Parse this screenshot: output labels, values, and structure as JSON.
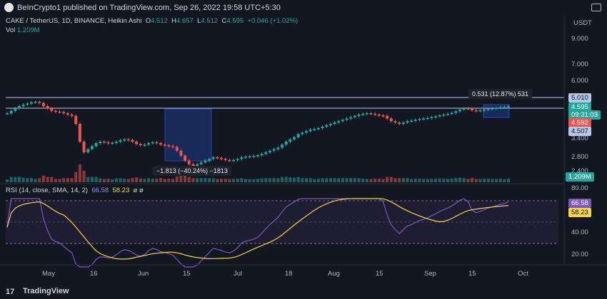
{
  "header": {
    "published": "BeInCrypto1 published on TradingView.com, Sep 26, 2022 19:58 UTC+5:30"
  },
  "legend": {
    "symbol": "CAKE / TetherUS, 1D, BINANCE, Heikin Ashi",
    "o_label": "O",
    "o": "4.512",
    "h_label": "H",
    "h": "4.657",
    "l_label": "L",
    "l": "4.512",
    "c_label": "C",
    "c": "4.595",
    "change": "+0.046 (+1.02%)",
    "vol_label": "Vol",
    "vol": "1.209M"
  },
  "rsi_legend": {
    "label": "RSI (14, close, SMA, 14, 2)",
    "rsi": "66.58",
    "sma": "58.23",
    "tail": "ø ø"
  },
  "price_axis": {
    "currency": "USDT",
    "ticks": [
      "9.000",
      "7.000",
      "6.000",
      "3.400",
      "2.800",
      "2.400"
    ]
  },
  "price_badges": {
    "upper_line": "5.010",
    "last": "4.595",
    "countdown": "09:31:03",
    "red": "4.592",
    "lower_line": "4.507",
    "volume": "1.209M"
  },
  "rsi_axis": {
    "ticks": [
      "80.00",
      "40.00",
      "20.00"
    ],
    "rsi_badge": "66.58",
    "sma_badge": "58.23"
  },
  "annotations": {
    "measure_up": "0.531 (12.87%) 531",
    "measure_down": "−1.813 (−40.24%) −1813"
  },
  "time_axis": [
    "May",
    "16",
    "Jun",
    "15",
    "Jul",
    "18",
    "Aug",
    "15",
    "Sep",
    "15",
    "Oct"
  ],
  "footer": {
    "brand": "TradingView",
    "mark": "17"
  },
  "colors": {
    "up": "#26a69a",
    "down": "#ef5350",
    "rsi": "#7e57c2",
    "sma": "#f5d547",
    "bg": "#131722",
    "line": "#b8c7e8"
  },
  "chart_data": {
    "type": "candlestick",
    "symbol": "CAKE / TetherUS",
    "candles": [
      [
        4.3,
        4.3
      ],
      [
        4.3,
        4.4
      ],
      [
        4.4,
        4.5
      ],
      [
        4.5,
        4.6
      ],
      [
        4.6,
        4.67
      ],
      [
        4.67,
        4.72
      ],
      [
        4.72,
        4.78
      ],
      [
        4.78,
        4.8
      ],
      [
        4.8,
        4.75
      ],
      [
        4.75,
        4.6
      ],
      [
        4.6,
        4.5
      ],
      [
        4.5,
        4.4
      ],
      [
        4.4,
        4.37
      ],
      [
        4.37,
        4.35
      ],
      [
        4.35,
        4.3
      ],
      [
        4.3,
        4.25
      ],
      [
        4.25,
        4.2
      ],
      [
        4.2,
        3.9
      ],
      [
        3.9,
        3.3
      ],
      [
        3.3,
        2.95
      ],
      [
        2.95,
        3.05
      ],
      [
        3.05,
        3.15
      ],
      [
        3.15,
        3.25
      ],
      [
        3.25,
        3.3
      ],
      [
        3.3,
        3.28
      ],
      [
        3.28,
        3.25
      ],
      [
        3.25,
        3.26
      ],
      [
        3.26,
        3.3
      ],
      [
        3.3,
        3.35
      ],
      [
        3.35,
        3.38
      ],
      [
        3.38,
        3.36
      ],
      [
        3.36,
        3.3
      ],
      [
        3.3,
        3.22
      ],
      [
        3.22,
        3.18
      ],
      [
        3.18,
        3.2
      ],
      [
        3.2,
        3.25
      ],
      [
        3.25,
        3.28
      ],
      [
        3.28,
        3.25
      ],
      [
        3.25,
        3.2
      ],
      [
        3.2,
        3.18
      ],
      [
        3.18,
        3.15
      ],
      [
        3.15,
        3.12
      ],
      [
        3.12,
        3.0
      ],
      [
        3.0,
        2.85
      ],
      [
        2.85,
        2.7
      ],
      [
        2.7,
        2.6
      ],
      [
        2.6,
        2.55
      ],
      [
        2.55,
        2.6
      ],
      [
        2.6,
        2.65
      ],
      [
        2.65,
        2.7
      ],
      [
        2.7,
        2.75
      ],
      [
        2.75,
        2.8
      ],
      [
        2.8,
        2.78
      ],
      [
        2.78,
        2.75
      ],
      [
        2.75,
        2.72
      ],
      [
        2.72,
        2.7
      ],
      [
        2.7,
        2.72
      ],
      [
        2.72,
        2.75
      ],
      [
        2.75,
        2.8
      ],
      [
        2.8,
        2.82
      ],
      [
        2.82,
        2.83
      ],
      [
        2.83,
        2.84
      ],
      [
        2.84,
        2.86
      ],
      [
        2.86,
        2.9
      ],
      [
        2.9,
        2.95
      ],
      [
        2.95,
        3.0
      ],
      [
        3.0,
        3.05
      ],
      [
        3.05,
        3.1
      ],
      [
        3.1,
        3.2
      ],
      [
        3.2,
        3.3
      ],
      [
        3.3,
        3.38
      ],
      [
        3.38,
        3.45
      ],
      [
        3.45,
        3.55
      ],
      [
        3.55,
        3.6
      ],
      [
        3.6,
        3.65
      ],
      [
        3.65,
        3.7
      ],
      [
        3.7,
        3.72
      ],
      [
        3.72,
        3.75
      ],
      [
        3.75,
        3.8
      ],
      [
        3.8,
        3.85
      ],
      [
        3.85,
        3.9
      ],
      [
        3.9,
        3.95
      ],
      [
        3.95,
        4.0
      ],
      [
        4.0,
        4.05
      ],
      [
        4.05,
        4.1
      ],
      [
        4.1,
        4.15
      ],
      [
        4.15,
        4.2
      ],
      [
        4.2,
        4.25
      ],
      [
        4.25,
        4.28
      ],
      [
        4.28,
        4.3
      ],
      [
        4.3,
        4.28
      ],
      [
        4.28,
        4.25
      ],
      [
        4.25,
        4.22
      ],
      [
        4.22,
        4.2
      ],
      [
        4.2,
        4.1
      ],
      [
        4.1,
        4.0
      ],
      [
        4.0,
        3.95
      ],
      [
        3.95,
        3.9
      ],
      [
        3.9,
        3.95
      ],
      [
        3.95,
        4.0
      ],
      [
        4.0,
        4.02
      ],
      [
        4.02,
        4.05
      ],
      [
        4.05,
        4.08
      ],
      [
        4.08,
        4.1
      ],
      [
        4.1,
        4.12
      ],
      [
        4.12,
        4.15
      ],
      [
        4.15,
        4.18
      ],
      [
        4.18,
        4.22
      ],
      [
        4.22,
        4.25
      ],
      [
        4.25,
        4.28
      ],
      [
        4.28,
        4.32
      ],
      [
        4.32,
        4.38
      ],
      [
        4.38,
        4.45
      ],
      [
        4.45,
        4.5
      ],
      [
        4.5,
        4.48
      ],
      [
        4.48,
        4.42
      ],
      [
        4.42,
        4.4
      ],
      [
        4.4,
        4.42
      ],
      [
        4.42,
        4.45
      ],
      [
        4.45,
        4.48
      ],
      [
        4.48,
        4.5
      ],
      [
        4.5,
        4.52
      ],
      [
        4.52,
        4.55
      ],
      [
        4.55,
        4.56
      ],
      [
        4.56,
        4.595
      ]
    ]
  }
}
